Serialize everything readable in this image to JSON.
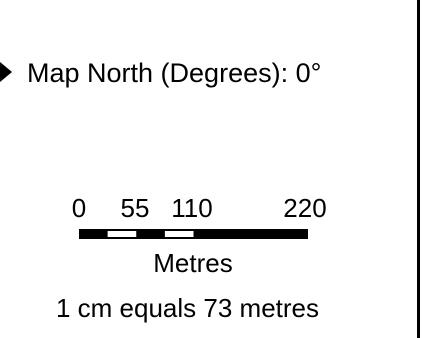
{
  "north_arrow": {
    "icon": "north-arrow-icon",
    "label": "Map North (Degrees): 0°"
  },
  "scale_bar": {
    "ticks": [
      "0",
      "55",
      "110",
      "220"
    ],
    "tick_values": [
      0,
      55,
      110,
      220
    ],
    "max_value": 220,
    "units": "Metres",
    "ratio_text": "1 cm equals 73 metres",
    "colors": {
      "dark": "#000000",
      "light": "#ffffff"
    }
  }
}
